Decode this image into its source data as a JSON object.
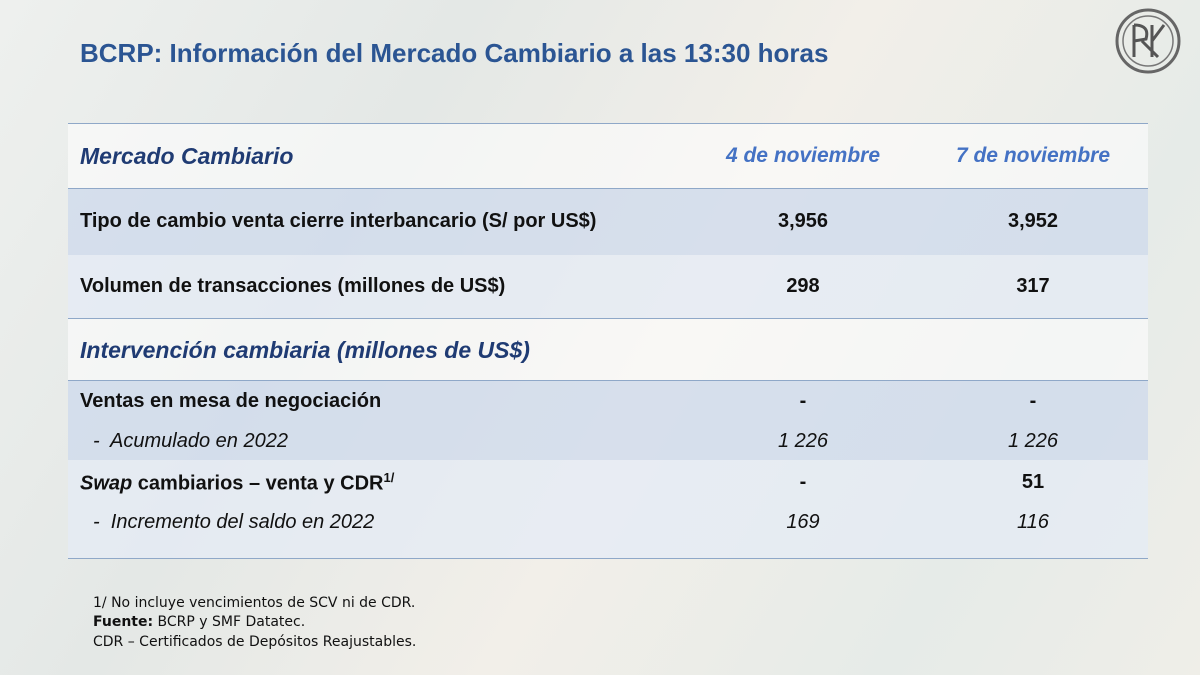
{
  "title": "BCRP: Información del Mercado Cambiario a las 13:30 horas",
  "table": {
    "header": [
      "Mercado Cambiario",
      "4 de noviembre",
      "7 de noviembre"
    ],
    "rows": [
      [
        "Tipo de cambio venta cierre interbancario (S/ por US$)",
        "3,956",
        "3,952"
      ],
      [
        "Volumen de transacciones (millones de US$)",
        "298",
        "317"
      ]
    ],
    "section": "Intervención cambiaria (millones de US$)",
    "section_rows": [
      [
        "Ventas en mesa de negociación",
        "-",
        "-"
      ],
      [
        "-  Acumulado en 2022",
        "1 226",
        "1 226"
      ],
      [
        {
          "italic": "Swap",
          "text": " cambiarios – venta y CDR",
          "sup": "1/"
        },
        "-",
        "51"
      ],
      [
        "-  Incremento del saldo en 2022",
        "169",
        "116"
      ]
    ]
  },
  "footnotes": [
    {
      "text": "1/ No incluye vencimientos de SCV ni de CDR."
    },
    {
      "bold": "Fuente:",
      "text": " BCRP y SMF Datatec."
    },
    {
      "text": "CDR – Certificados de Depósitos Reajustables."
    }
  ]
}
